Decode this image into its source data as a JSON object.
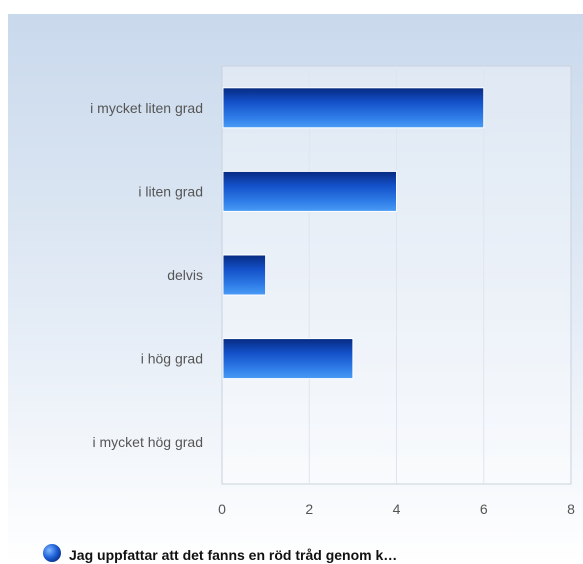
{
  "chart_data": {
    "type": "bar",
    "orientation": "horizontal",
    "categories": [
      "i mycket liten grad",
      "i liten grad",
      "delvis",
      "i hög grad",
      "i mycket hög grad"
    ],
    "series": [
      {
        "name": "Jag uppfattar att det fanns en röd tråd genom k…",
        "values": [
          6,
          4,
          1,
          3,
          0
        ]
      }
    ],
    "xlim": [
      0,
      8
    ],
    "xticks": [
      0,
      2,
      4,
      6,
      8
    ],
    "grid": true,
    "legend": "bottom-left",
    "colors": {
      "bar_dark": "#0a3fb0",
      "bar_light": "#3a8cf0",
      "background_top": "#c9d9ec",
      "background_bottom": "#ffffff",
      "grid": "#dde5f0"
    }
  }
}
